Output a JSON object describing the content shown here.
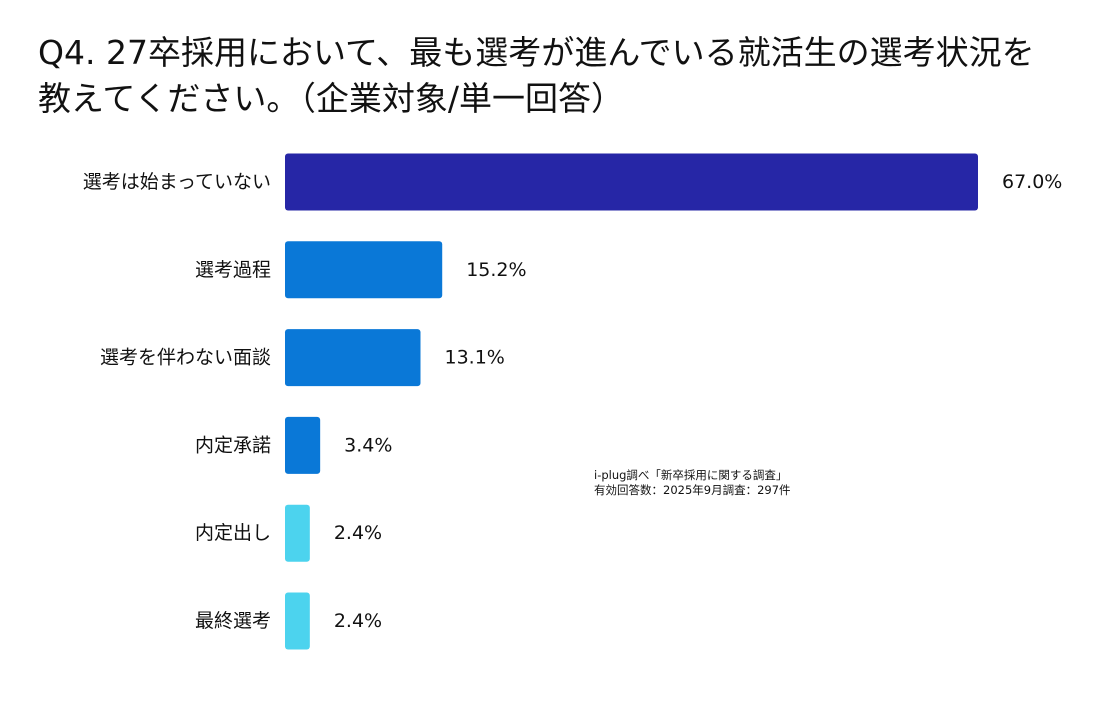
{
  "title": {
    "line1": "Q4. 27卒採用において、最も選考が進んでいる就活生の選考状況を",
    "line2": "教えてください。（企業対象/単一回答）"
  },
  "source": {
    "line1": "i-plug調べ「新卒採用に関する調査」",
    "line2": "有効回答数：2025年9月調査：297件"
  },
  "chart_data": {
    "type": "bar",
    "orientation": "horizontal",
    "title": "Q4. 27卒採用において、最も選考が進んでいる就活生の選考状況を教えてください。（企業対象/単一回答）",
    "categories": [
      "選考は始まっていない",
      "選考過程",
      "選考を伴わない面談",
      "内定承諾",
      "内定出し",
      "最終選考"
    ],
    "values": [
      67.0,
      15.2,
      13.1,
      3.4,
      2.4,
      2.4
    ],
    "value_labels": [
      "67.0%",
      "15.2%",
      "13.1%",
      "3.4%",
      "2.4%",
      "2.4%"
    ],
    "unit": "%",
    "xlim": [
      0,
      67.0
    ],
    "grid": false,
    "legend": "none",
    "colors": [
      "#2626a6",
      "#0a78d7",
      "#0a78d7",
      "#0a78d7",
      "#4cd3ee",
      "#4cd3ee"
    ]
  }
}
